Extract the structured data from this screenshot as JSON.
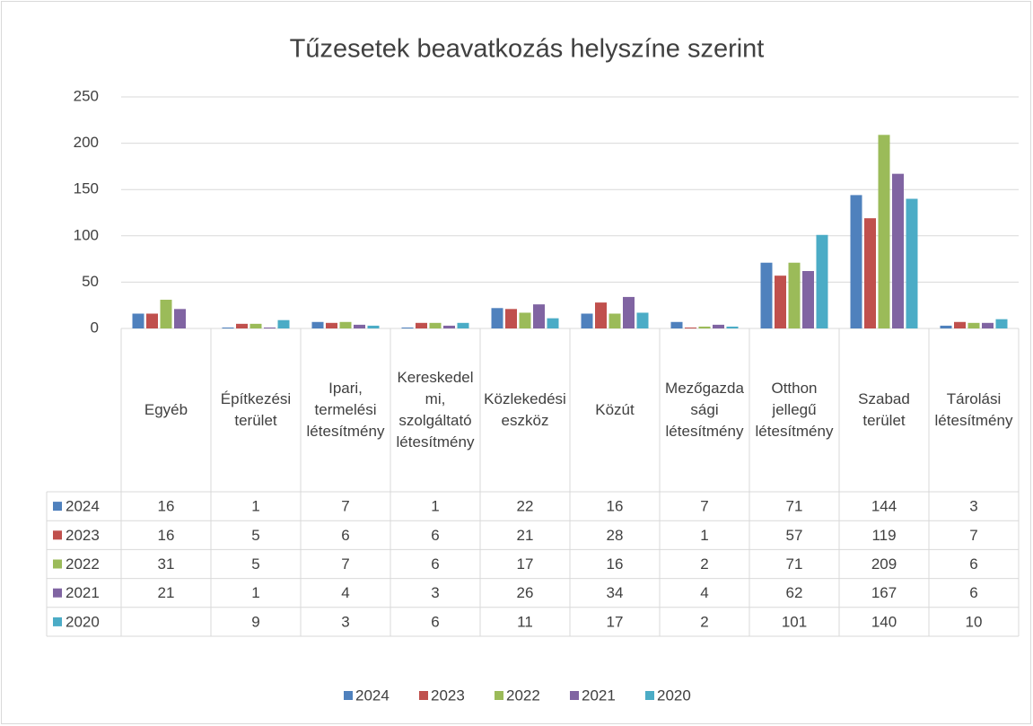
{
  "chart_data": {
    "type": "bar",
    "title": "Tűzesetek beavatkozás helyszíne szerint",
    "categories": [
      "Egyéb",
      "Építkezési terület",
      "Ipari, termelési létesítmény",
      "Kereskedelmi, szolgáltató létesítmény",
      "Közlekedési eszköz",
      "Közút",
      "Mezőgazdasági létesítmény",
      "Otthon jellegű létesítmény",
      "Szabad terület",
      "Tárolási létesítmény"
    ],
    "series": [
      {
        "name": "2024",
        "color": "#4f81bd",
        "values": [
          16,
          1,
          7,
          1,
          22,
          16,
          7,
          71,
          144,
          3
        ]
      },
      {
        "name": "2023",
        "color": "#c0504d",
        "values": [
          16,
          5,
          6,
          6,
          21,
          28,
          1,
          57,
          119,
          7
        ]
      },
      {
        "name": "2022",
        "color": "#9bbb59",
        "values": [
          31,
          5,
          7,
          6,
          17,
          16,
          2,
          71,
          209,
          6
        ]
      },
      {
        "name": "2021",
        "color": "#8064a2",
        "values": [
          21,
          1,
          4,
          3,
          26,
          34,
          4,
          62,
          167,
          6
        ]
      },
      {
        "name": "2020",
        "color": "#4bacc6",
        "values": [
          null,
          9,
          3,
          6,
          11,
          17,
          2,
          101,
          140,
          10
        ]
      }
    ],
    "ylim": [
      0,
      250
    ],
    "yticks": [
      0,
      50,
      100,
      150,
      200,
      250
    ],
    "grid": true,
    "legend": "bottom",
    "data_table": true
  }
}
